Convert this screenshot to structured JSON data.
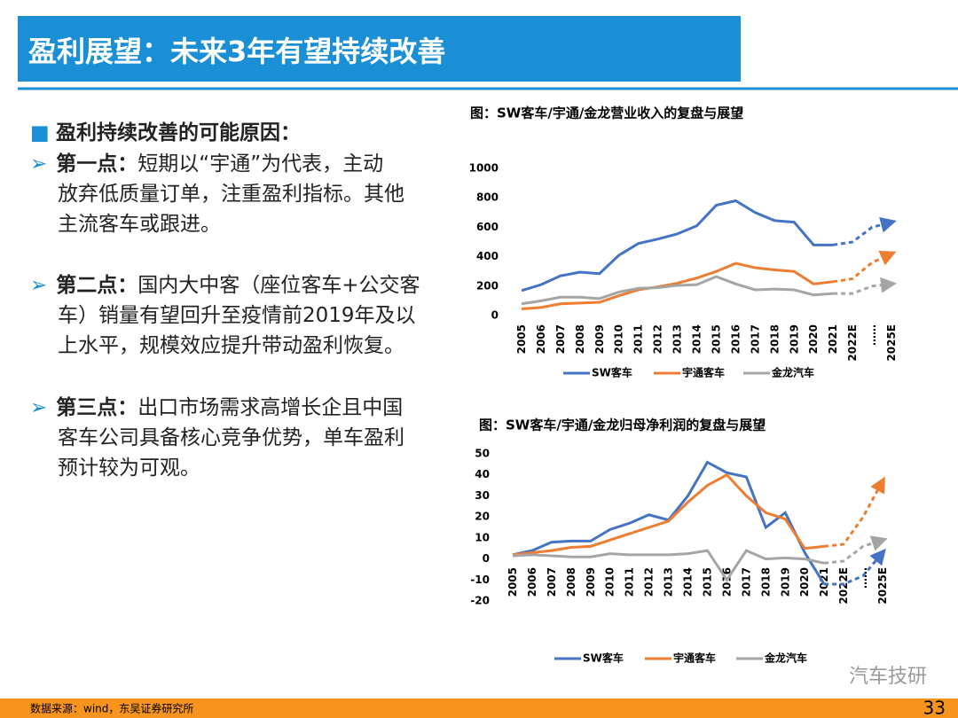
{
  "header": {
    "title": "盈利展望：未来3年有望持续改善"
  },
  "heading": "盈利持续改善的可能原因：",
  "bullets": [
    {
      "label": "第一点：",
      "lines": [
        "短期以“宇通”为代表，主动",
        "放弃低质量订单，注重盈利指标。其他",
        "主流客车或跟进。"
      ]
    },
    {
      "label": "第二点：",
      "lines": [
        "国内大中客（座位客车+公交客",
        "车）销量有望回升至疫情前2019年及以",
        "上水平，规模效应提升带动盈利恢复。"
      ]
    },
    {
      "label": "第三点：",
      "lines": [
        "出口市场需求高增长企且中国",
        "客车公司具备核心竞争优势，单车盈利",
        "预计较为可观。"
      ]
    }
  ],
  "footer": {
    "source": "数据来源：wind，东吴证券研究所",
    "page": "33",
    "watermark": "汽车技研"
  },
  "chart_data": [
    {
      "type": "line",
      "title": "图：SW客车/宇通/金龙营业收入的复盘与展望",
      "categories": [
        "2005",
        "2006",
        "2007",
        "2008",
        "2009",
        "2010",
        "2011",
        "2012",
        "2013",
        "2014",
        "2015",
        "2016",
        "2017",
        "2018",
        "2019",
        "2020",
        "2021",
        "2022E",
        "……",
        "2025E"
      ],
      "ylim": [
        0,
        1000
      ],
      "yticks": [
        0,
        200,
        400,
        600,
        800,
        1000
      ],
      "dashed_from": 16,
      "series": [
        {
          "name": "SW客车",
          "color": "#4472c4",
          "values": [
            170,
            210,
            270,
            295,
            285,
            410,
            490,
            520,
            555,
            610,
            750,
            780,
            700,
            645,
            635,
            480,
            480,
            500,
            600,
            635
          ]
        },
        {
          "name": "宇通客车",
          "color": "#ed7d31",
          "values": [
            45,
            55,
            80,
            85,
            90,
            135,
            175,
            195,
            220,
            255,
            300,
            355,
            325,
            310,
            300,
            215,
            230,
            250,
            360,
            420
          ]
        },
        {
          "name": "金龙汽车",
          "color": "#a5a5a5",
          "values": [
            80,
            100,
            125,
            125,
            115,
            160,
            185,
            190,
            205,
            210,
            265,
            215,
            175,
            180,
            175,
            140,
            150,
            150,
            200,
            215
          ]
        }
      ]
    },
    {
      "type": "line",
      "title": "图：SW客车/宇通/金龙归母净利润的复盘与展望",
      "categories": [
        "2005",
        "2006",
        "2007",
        "2008",
        "2009",
        "2010",
        "2011",
        "2012",
        "2013",
        "2014",
        "2015",
        "2016",
        "2017",
        "2018",
        "2019",
        "2020",
        "2021",
        "2022E",
        "……",
        "2025E"
      ],
      "ylim": [
        -20,
        50
      ],
      "yticks": [
        -20,
        -10,
        0,
        10,
        20,
        30,
        40,
        50
      ],
      "dashed_from": 16,
      "series": [
        {
          "name": "SW客车",
          "color": "#4472c4",
          "values": [
            2,
            4,
            8,
            8.5,
            8.5,
            14,
            17,
            21,
            18.5,
            30,
            46,
            41,
            39,
            15,
            22,
            3,
            -12,
            -12,
            -8,
            3
          ]
        },
        {
          "name": "宇通客车",
          "color": "#ed7d31",
          "values": [
            2,
            3,
            4,
            5.5,
            6,
            9,
            12,
            15,
            18,
            27,
            35,
            40,
            30,
            22,
            19,
            5,
            6,
            7,
            20,
            37
          ]
        },
        {
          "name": "金龙汽车",
          "color": "#a5a5a5",
          "values": [
            1.5,
            2,
            1.5,
            1,
            1,
            2.5,
            2,
            2,
            2,
            2.5,
            4,
            -10,
            4,
            0,
            0.5,
            0,
            -2,
            -1,
            6,
            9
          ]
        }
      ]
    }
  ]
}
